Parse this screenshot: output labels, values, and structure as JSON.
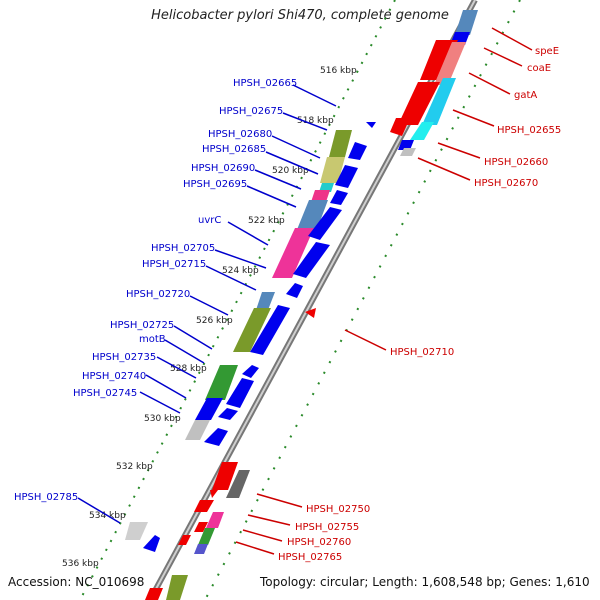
{
  "title": "Helicobacter pylori Shi470, complete genome",
  "accession": "Accession: NC_010698",
  "summary": "Topology: circular; Length: 1,608,548 bp; Genes: 1,610",
  "colors": {
    "forward_label": "#cc0000",
    "reverse_label": "#0000cc",
    "backbone": "#888888",
    "tick": "#2a7a2a"
  },
  "ruler_ticks": [
    "516 kbp",
    "518 kbp",
    "520 kbp",
    "522 kbp",
    "524 kbp",
    "526 kbp",
    "528 kbp",
    "530 kbp",
    "532 kbp",
    "534 kbp",
    "536 kbp"
  ],
  "genes_reverse_strand": [
    "HPSH_02665",
    "HPSH_02675",
    "HPSH_02680",
    "HPSH_02685",
    "HPSH_02690",
    "HPSH_02695",
    "uvrC",
    "HPSH_02705",
    "HPSH_02715",
    "HPSH_02720",
    "HPSH_02725",
    "motB",
    "HPSH_02735",
    "HPSH_02740",
    "HPSH_02745",
    "HPSH_02785"
  ],
  "genes_forward_strand": [
    "speE",
    "coaE",
    "gatA",
    "HPSH_02655",
    "HPSH_02660",
    "HPSH_02670",
    "HPSH_02710",
    "HPSH_02750",
    "HPSH_02755",
    "HPSH_02760",
    "HPSH_02765"
  ]
}
